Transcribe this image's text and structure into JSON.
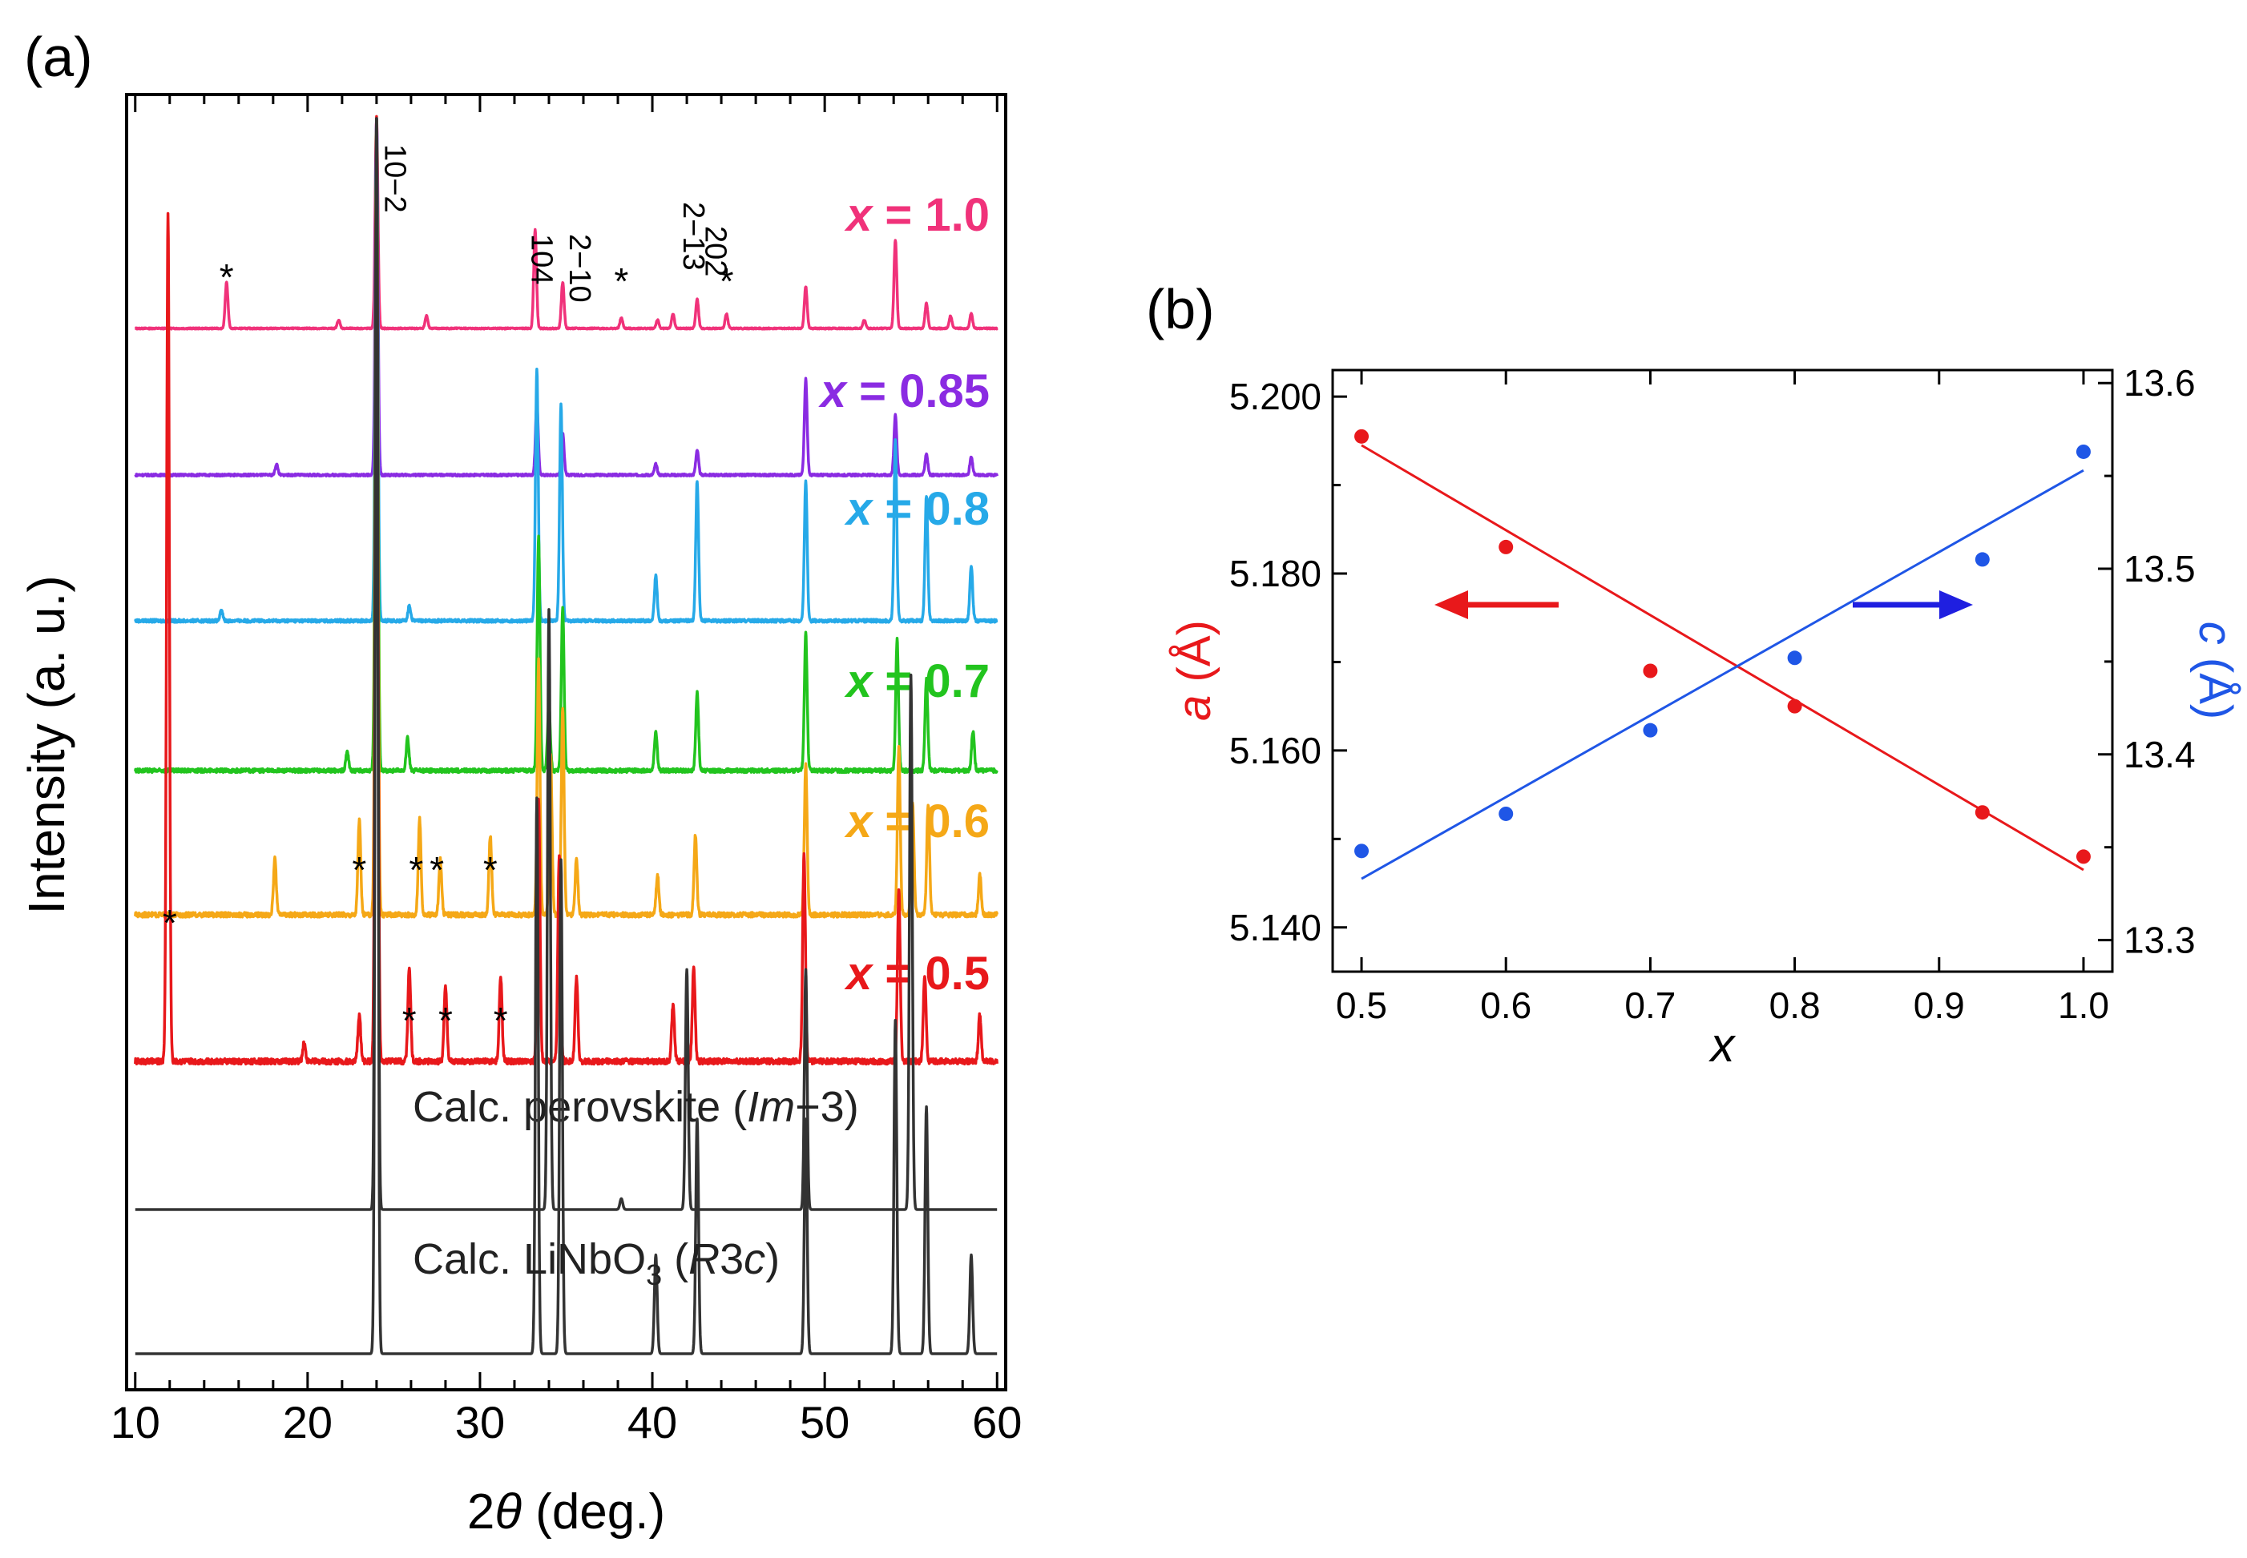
{
  "chart_data": [
    {
      "panel_label": "(a)",
      "type": "line",
      "xlabel": "2θ (deg.)",
      "xlabel_parts": {
        "prefix": "2",
        "symbol": "θ",
        "suffix": " (deg.)"
      },
      "ylabel": "Intensity (a. u.)",
      "xlim": [
        9.5,
        60.5
      ],
      "xticks": [
        10,
        20,
        30,
        40,
        50,
        60
      ],
      "yticks": [],
      "series": [
        {
          "name": "x = 1.0",
          "label_pre": "x",
          "label_post": " = 1.0",
          "color": "#f0327a",
          "peaks": [
            [
              15.3,
              0.22
            ],
            [
              21.8,
              0.04
            ],
            [
              24.0,
              1.0
            ],
            [
              26.9,
              0.06
            ],
            [
              33.2,
              0.47
            ],
            [
              34.8,
              0.22
            ],
            [
              38.2,
              0.05
            ],
            [
              40.3,
              0.04
            ],
            [
              41.2,
              0.07
            ],
            [
              42.6,
              0.14
            ],
            [
              44.3,
              0.07
            ],
            [
              48.9,
              0.2
            ],
            [
              52.3,
              0.04
            ],
            [
              54.1,
              0.42
            ],
            [
              55.9,
              0.12
            ],
            [
              57.3,
              0.06
            ],
            [
              58.5,
              0.07
            ]
          ]
        },
        {
          "name": "x = 0.85",
          "label_pre": "x",
          "label_post": " = 0.85",
          "color": "#8a2be2",
          "peaks": [
            [
              18.2,
              0.03
            ],
            [
              24.0,
              1.0
            ],
            [
              33.3,
              0.2
            ],
            [
              34.8,
              0.12
            ],
            [
              40.2,
              0.03
            ],
            [
              42.6,
              0.07
            ],
            [
              48.9,
              0.27
            ],
            [
              54.1,
              0.17
            ],
            [
              55.9,
              0.06
            ],
            [
              58.5,
              0.05
            ]
          ]
        },
        {
          "name": "x = 0.8",
          "label_pre": "x",
          "label_post": " = 0.8",
          "color": "#26a9e8",
          "peaks": [
            [
              15.0,
              0.02
            ],
            [
              24.0,
              1.0
            ],
            [
              25.9,
              0.03
            ],
            [
              33.3,
              0.5
            ],
            [
              34.7,
              0.43
            ],
            [
              40.2,
              0.09
            ],
            [
              42.6,
              0.28
            ],
            [
              48.9,
              0.28
            ],
            [
              54.1,
              0.36
            ],
            [
              55.9,
              0.25
            ],
            [
              58.5,
              0.11
            ]
          ]
        },
        {
          "name": "x = 0.7",
          "label_pre": "x",
          "label_post": " = 0.7",
          "color": "#22c41e",
          "peaks": [
            [
              22.3,
              0.03
            ],
            [
              24.0,
              1.0
            ],
            [
              25.8,
              0.05
            ],
            [
              33.4,
              0.36
            ],
            [
              34.0,
              0.1
            ],
            [
              34.8,
              0.25
            ],
            [
              40.2,
              0.06
            ],
            [
              42.6,
              0.12
            ],
            [
              48.9,
              0.21
            ],
            [
              54.2,
              0.2
            ],
            [
              55.9,
              0.14
            ],
            [
              58.6,
              0.06
            ]
          ]
        },
        {
          "name": "x = 0.6",
          "label_pre": "x",
          "label_post": " = 0.6",
          "color": "#f5a817",
          "peaks": [
            [
              18.1,
              0.07
            ],
            [
              23.0,
              0.12
            ],
            [
              24.0,
              1.0
            ],
            [
              26.5,
              0.12
            ],
            [
              27.7,
              0.07
            ],
            [
              30.6,
              0.1
            ],
            [
              33.4,
              0.32
            ],
            [
              34.1,
              0.2
            ],
            [
              34.8,
              0.26
            ],
            [
              35.6,
              0.07
            ],
            [
              40.3,
              0.05
            ],
            [
              42.5,
              0.1
            ],
            [
              48.9,
              0.19
            ],
            [
              54.3,
              0.21
            ],
            [
              55.1,
              0.14
            ],
            [
              56.0,
              0.14
            ],
            [
              59.0,
              0.05
            ]
          ]
        },
        {
          "name": "x = 0.5",
          "label_pre": "x",
          "label_post": " = 0.5",
          "color": "#e8181b",
          "peaks": [
            [
              11.9,
              0.9
            ],
            [
              19.8,
              0.02
            ],
            [
              23.0,
              0.05
            ],
            [
              24.0,
              1.0
            ],
            [
              25.9,
              0.1
            ],
            [
              28.0,
              0.08
            ],
            [
              31.2,
              0.09
            ],
            [
              33.4,
              0.28
            ],
            [
              34.6,
              0.22
            ],
            [
              35.6,
              0.09
            ],
            [
              41.2,
              0.06
            ],
            [
              42.4,
              0.1
            ],
            [
              48.8,
              0.22
            ],
            [
              54.3,
              0.18
            ],
            [
              55.8,
              0.09
            ],
            [
              59.0,
              0.05
            ]
          ]
        },
        {
          "name": "Calc. perovskite (Im−3)",
          "label_pre": "Calc. perovskite (",
          "label_ital": "Im",
          "label_post": "−3)",
          "color": "#333333",
          "peaks": [
            [
              24.0,
              1.0
            ],
            [
              34.0,
              0.55
            ],
            [
              38.2,
              0.01
            ],
            [
              42.0,
              0.22
            ],
            [
              48.9,
              0.22
            ],
            [
              55.0,
              0.49
            ]
          ]
        },
        {
          "name": "Calc. LiNbO3 (R3c)",
          "label_pre": "Calc. LiNbO",
          "label_sub": "3",
          "label_post": " (",
          "label_ital": "R",
          "label_post2": "3",
          "label_ital2": "c",
          "label_end": ")",
          "color": "#333333",
          "peaks": [
            [
              24.0,
              1.0
            ],
            [
              33.3,
              0.45
            ],
            [
              34.7,
              0.4
            ],
            [
              40.2,
              0.08
            ],
            [
              42.6,
              0.19
            ],
            [
              48.9,
              0.19
            ],
            [
              54.1,
              0.27
            ],
            [
              55.9,
              0.2
            ],
            [
              58.5,
              0.08
            ]
          ]
        }
      ],
      "annotations": {
        "miller_indices": [
          "10−2",
          "104",
          "2−10",
          "2−13",
          "202"
        ],
        "impurity_marker": "*"
      }
    },
    {
      "panel_label": "(b)",
      "type": "scatter",
      "xlabel": "x",
      "ylabel_left": "a (Å)",
      "ylabel_left_parts": {
        "symbol": "a",
        "unit": " (Å)"
      },
      "ylabel_right": "c (Å)",
      "ylabel_right_parts": {
        "symbol": "c",
        "unit": " (Å)"
      },
      "xlim": [
        0.48,
        1.02
      ],
      "xticks": [
        "0.5",
        "0.6",
        "0.7",
        "0.8",
        "0.9",
        "1.0"
      ],
      "ylim_left": [
        5.135,
        5.203
      ],
      "yticks_left": [
        "5.140",
        "5.160",
        "5.180",
        "5.200"
      ],
      "ylim_right": [
        13.283,
        13.607
      ],
      "yticks_right": [
        "13.3",
        "13.4",
        "13.5",
        "13.6"
      ],
      "series": [
        {
          "name": "a",
          "axis": "left",
          "color": "#e8181b",
          "x": [
            0.5,
            0.6,
            0.7,
            0.8,
            0.93,
            1.0
          ],
          "y": [
            5.1955,
            5.183,
            5.169,
            5.165,
            5.153,
            5.148
          ],
          "fit": {
            "x": [
              0.5,
              1.0
            ],
            "y": [
              5.1945,
              5.1465
            ]
          }
        },
        {
          "name": "c",
          "axis": "right",
          "color": "#1f56e6",
          "x": [
            0.5,
            0.6,
            0.7,
            0.8,
            0.93,
            1.0
          ],
          "y": [
            13.348,
            13.368,
            13.413,
            13.452,
            13.505,
            13.563
          ],
          "fit": {
            "x": [
              0.5,
              1.0
            ],
            "y": [
              13.333,
              13.553
            ]
          }
        }
      ]
    }
  ]
}
